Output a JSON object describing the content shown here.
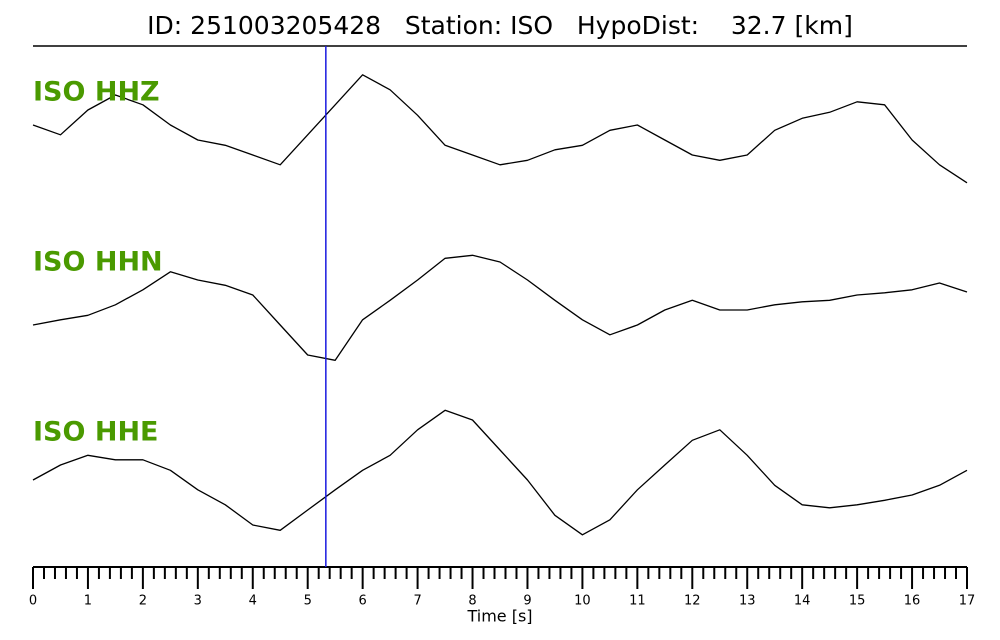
{
  "chart_data": {
    "type": "line",
    "title": "ID: 251003205428   Station: ISO   HypoDist:    32.7 [km]",
    "xlabel": "Time [s]",
    "xlim": [
      0,
      17
    ],
    "xticks": [
      0,
      1,
      2,
      3,
      4,
      5,
      6,
      7,
      8,
      9,
      10,
      11,
      12,
      13,
      14,
      15,
      16,
      17
    ],
    "xminorticks": [
      0.2,
      0.4,
      0.6,
      0.8,
      1.2,
      1.4,
      1.6,
      1.8,
      2.2,
      2.4,
      2.6,
      2.8,
      3.2,
      3.4,
      3.6,
      3.8,
      4.2,
      4.4,
      4.6,
      4.8,
      5.2,
      5.4,
      5.6,
      5.8,
      6.2,
      6.4,
      6.6,
      6.8,
      7.2,
      7.4,
      7.6,
      7.8,
      8.2,
      8.4,
      8.6,
      8.8,
      9.2,
      9.4,
      9.6,
      9.8,
      10.2,
      10.4,
      10.6,
      10.8,
      11.2,
      11.4,
      11.6,
      11.8,
      12.2,
      12.4,
      12.6,
      12.8,
      13.2,
      13.4,
      13.6,
      13.8,
      14.2,
      14.4,
      14.6,
      14.8,
      15.2,
      15.4,
      15.6,
      15.8,
      16.2,
      16.4,
      16.6,
      16.8
    ],
    "ylim": [
      -1,
      1
    ],
    "label_color": "#4a9a00",
    "marker_x": 5.33,
    "marker_color": "#1a1adf",
    "x": [
      0,
      0.5,
      1,
      1.5,
      2,
      2.5,
      3,
      3.5,
      4,
      4.5,
      5,
      5.5,
      6,
      6.5,
      7,
      7.5,
      8,
      8.5,
      9,
      9.5,
      10,
      10.5,
      11,
      11.5,
      12,
      12.5,
      13,
      13.5,
      14,
      14.5,
      15,
      15.5,
      16,
      16.5,
      17
    ],
    "series": [
      {
        "name": "ISO HHZ",
        "color": "#000000",
        "values": [
          0.2,
          0.07,
          0.4,
          0.6,
          0.47,
          0.2,
          0,
          -0.07,
          -0.2,
          -0.33,
          0.07,
          0.47,
          0.87,
          0.67,
          0.33,
          -0.07,
          -0.2,
          -0.33,
          -0.27,
          -0.13,
          -0.07,
          0.13,
          0.2,
          0,
          -0.2,
          -0.27,
          -0.2,
          0.13,
          0.29,
          0.37,
          0.51,
          0.47,
          0,
          -0.33,
          -0.57
        ]
      },
      {
        "name": "ISO HHN",
        "color": "#000000",
        "values": [
          -0.2,
          -0.13,
          -0.07,
          0.07,
          0.27,
          0.51,
          0.4,
          0.33,
          0.2,
          -0.2,
          -0.6,
          -0.67,
          -0.13,
          0.13,
          0.4,
          0.69,
          0.73,
          0.64,
          0.4,
          0.13,
          -0.13,
          -0.33,
          -0.2,
          0,
          0.13,
          0,
          0,
          0.07,
          0.11,
          0.13,
          0.2,
          0.23,
          0.27,
          0.36,
          0.24
        ]
      },
      {
        "name": "ISO HHE",
        "color": "#000000",
        "values": [
          0,
          0.2,
          0.33,
          0.27,
          0.27,
          0.13,
          -0.13,
          -0.33,
          -0.6,
          -0.67,
          -0.4,
          -0.13,
          0.13,
          0.33,
          0.67,
          0.93,
          0.8,
          0.4,
          0,
          -0.47,
          -0.73,
          -0.53,
          -0.13,
          0.2,
          0.53,
          0.67,
          0.33,
          -0.07,
          -0.33,
          -0.37,
          -0.33,
          -0.27,
          -0.2,
          -0.07,
          0.13
        ]
      }
    ]
  }
}
